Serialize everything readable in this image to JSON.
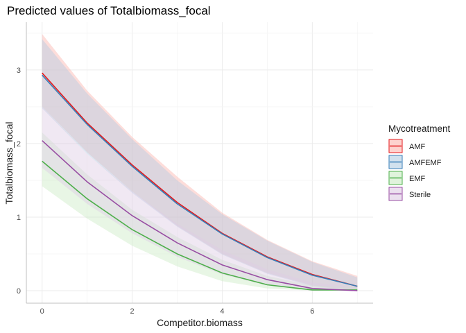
{
  "chart_data": {
    "type": "line",
    "title": "Predicted values of Totalbiomass_focal",
    "xlabel": "Competitor.biomass",
    "ylabel": "Totalbiomass_focal",
    "xlim": [
      -0.35,
      7.35
    ],
    "ylim": [
      -0.17,
      3.65
    ],
    "x_ticks": [
      0,
      2,
      4,
      6
    ],
    "y_ticks": [
      0,
      1,
      2,
      3
    ],
    "grid": true,
    "legend_position": "right",
    "legend_title": "Mycotreatment",
    "x": [
      0,
      1,
      2,
      3,
      4,
      5,
      6,
      7
    ],
    "series": [
      {
        "name": "AMF",
        "color": "#e41a1c",
        "fill": "#fbb4ae",
        "values": [
          2.96,
          2.28,
          1.71,
          1.2,
          0.78,
          0.46,
          0.22,
          0.06
        ],
        "lower": [
          2.5,
          1.88,
          1.35,
          0.88,
          0.5,
          0.24,
          0.07,
          0.0
        ],
        "upper": [
          3.49,
          2.72,
          2.09,
          1.55,
          1.06,
          0.69,
          0.4,
          0.2
        ]
      },
      {
        "name": "AMFEMF",
        "color": "#377eb8",
        "fill": "#b3cde3",
        "values": [
          2.93,
          2.26,
          1.69,
          1.18,
          0.77,
          0.45,
          0.21,
          0.06
        ],
        "lower": [
          2.48,
          1.86,
          1.33,
          0.87,
          0.49,
          0.23,
          0.06,
          0.0
        ],
        "upper": [
          3.42,
          2.68,
          2.06,
          1.5,
          1.04,
          0.68,
          0.39,
          0.18
        ]
      },
      {
        "name": "EMF",
        "color": "#4daf4a",
        "fill": "#ccebc5",
        "values": [
          1.76,
          1.25,
          0.83,
          0.5,
          0.24,
          0.08,
          0.01,
          0.01
        ],
        "lower": [
          1.42,
          0.98,
          0.61,
          0.33,
          0.13,
          0.03,
          0.0,
          0.0
        ],
        "upper": [
          2.15,
          1.58,
          1.1,
          0.73,
          0.42,
          0.2,
          0.07,
          0.05
        ]
      },
      {
        "name": "Sterile",
        "color": "#984ea3",
        "fill": "#decbe4",
        "values": [
          2.04,
          1.48,
          1.02,
          0.65,
          0.35,
          0.15,
          0.03,
          0.0
        ],
        "lower": [
          1.67,
          1.18,
          0.78,
          0.46,
          0.22,
          0.07,
          0.0,
          0.0
        ],
        "upper": [
          2.5,
          1.86,
          1.35,
          0.91,
          0.55,
          0.29,
          0.11,
          0.05
        ]
      }
    ]
  }
}
